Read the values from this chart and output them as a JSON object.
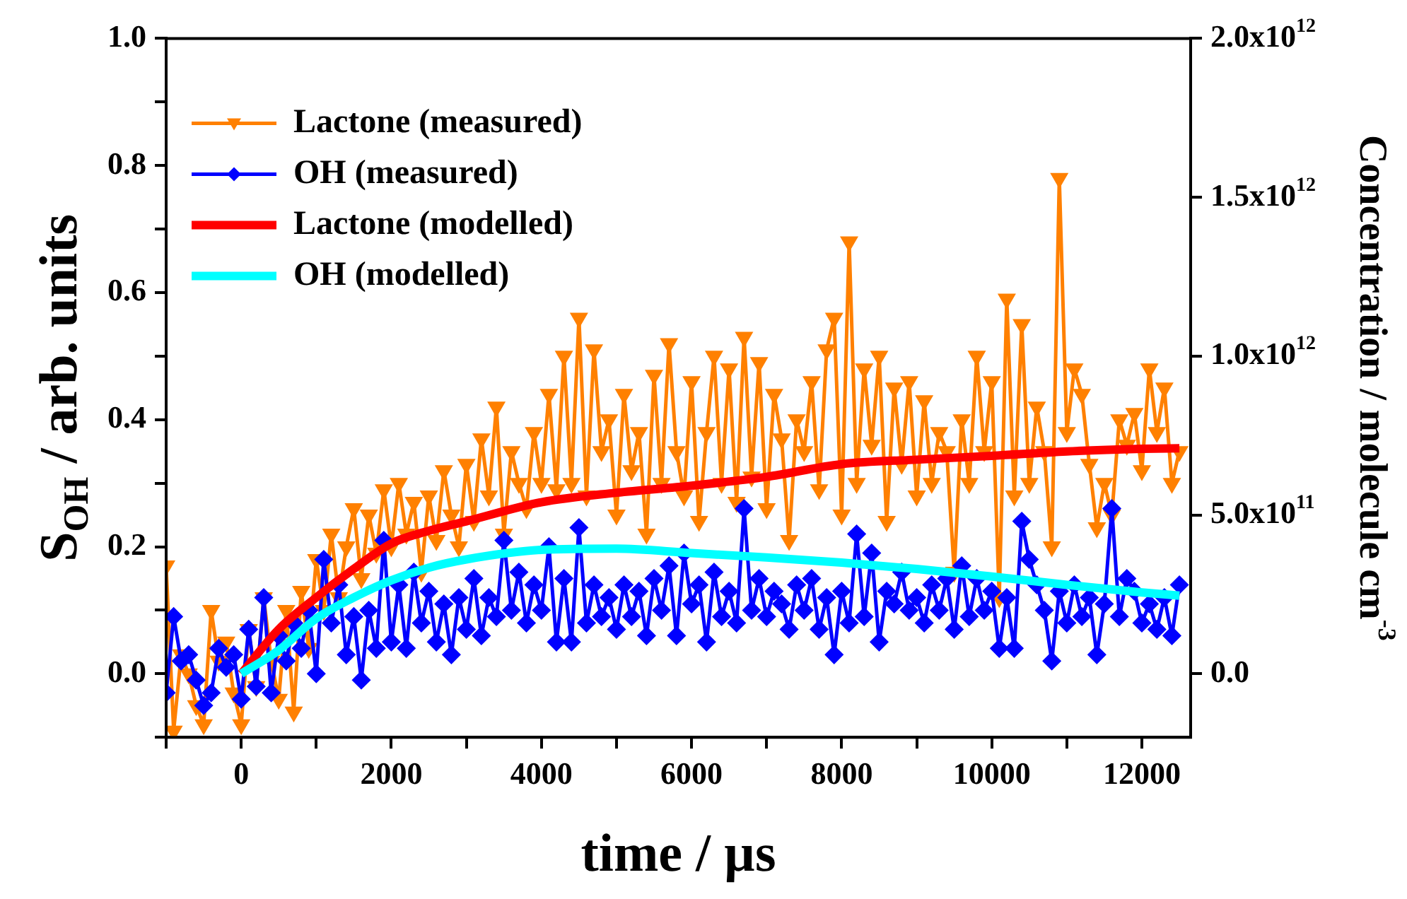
{
  "chart_data": {
    "type": "line",
    "xlabel": "time / µs",
    "ylabel": "S$_{OH}$ / arb. units",
    "y2label": "Concentration / molecule cm$^{-3}$",
    "xlim": [
      -1000,
      12650
    ],
    "ylim": [
      -0.1,
      1.0
    ],
    "y2lim": [
      -200000000000,
      2000000000000
    ],
    "xticks": [
      {
        "value": -1000,
        "label": null
      },
      0,
      {
        "value": 1000,
        "label": null
      },
      2000,
      {
        "value": 3000,
        "label": null
      },
      4000,
      {
        "value": 5000,
        "label": null
      },
      6000,
      {
        "value": 7000,
        "label": null
      },
      8000,
      {
        "value": 9000,
        "label": null
      },
      10000,
      {
        "value": 11000,
        "label": null
      },
      12000
    ],
    "yticks": [
      {
        "value": -0.1,
        "label": null
      },
      {
        "value": 0,
        "label": "0.0"
      },
      {
        "value": 0.1,
        "label": null
      },
      0.2,
      {
        "value": 0.3,
        "label": null
      },
      0.4,
      {
        "value": 0.5,
        "label": null
      },
      0.6,
      {
        "value": 0.7,
        "label": null
      },
      0.8,
      {
        "value": 0.9,
        "label": null
      },
      {
        "value": 1,
        "label": "1.0"
      }
    ],
    "y2ticks": [
      {
        "value": 0,
        "label": "0.0"
      },
      {
        "value": 500000000000,
        "label": "5.0x10$^{11}$"
      },
      {
        "value": 1000000000000,
        "label": "1.0x10$^{12}$"
      },
      {
        "value": 1500000000000,
        "label": "1.5x10$^{12}$"
      },
      {
        "value": 2000000000000,
        "label": "2.0x10$^{12}$"
      }
    ],
    "legend": "top left",
    "x": [
      -1000,
      -900,
      -800,
      -700,
      -600,
      -500,
      -400,
      -300,
      -200,
      -100,
      0,
      100,
      200,
      300,
      400,
      500,
      600,
      700,
      800,
      900,
      1000,
      1100,
      1200,
      1300,
      1400,
      1500,
      1600,
      1700,
      1800,
      1900,
      2000,
      2100,
      2200,
      2300,
      2400,
      2500,
      2600,
      2700,
      2800,
      2900,
      3000,
      3100,
      3200,
      3300,
      3400,
      3500,
      3600,
      3700,
      3800,
      3900,
      4000,
      4100,
      4200,
      4300,
      4400,
      4500,
      4600,
      4700,
      4800,
      4900,
      5000,
      5100,
      5200,
      5300,
      5400,
      5500,
      5600,
      5700,
      5800,
      5900,
      6000,
      6100,
      6200,
      6300,
      6400,
      6500,
      6600,
      6700,
      6800,
      6900,
      7000,
      7100,
      7200,
      7300,
      7400,
      7500,
      7600,
      7700,
      7800,
      7900,
      8000,
      8100,
      8200,
      8300,
      8400,
      8500,
      8600,
      8700,
      8800,
      8900,
      9000,
      9100,
      9200,
      9300,
      9400,
      9500,
      9600,
      9700,
      9800,
      9900,
      10000,
      10100,
      10200,
      10300,
      10400,
      10500,
      10600,
      10700,
      10800,
      10900,
      11000,
      11100,
      11200,
      11300,
      11400,
      11500,
      11600,
      11700,
      11800,
      11900,
      12000,
      12100,
      12200,
      12300,
      12400,
      12500
    ],
    "series": [
      {
        "name": "Lactone (measured)",
        "color": "#ff8000",
        "marker": "triangle",
        "values": [
          0.17,
          -0.09,
          0.03,
          0.0,
          -0.05,
          -0.08,
          0.1,
          0.02,
          0.05,
          -0.03,
          -0.08,
          0.07,
          -0.02,
          0.12,
          0.02,
          -0.04,
          0.1,
          -0.06,
          0.13,
          0.04,
          0.18,
          0.1,
          0.22,
          0.12,
          0.2,
          0.26,
          0.15,
          0.25,
          0.19,
          0.29,
          0.2,
          0.3,
          0.22,
          0.27,
          0.16,
          0.28,
          0.21,
          0.32,
          0.25,
          0.2,
          0.33,
          0.24,
          0.37,
          0.28,
          0.42,
          0.22,
          0.35,
          0.3,
          0.26,
          0.38,
          0.3,
          0.44,
          0.29,
          0.5,
          0.3,
          0.56,
          0.28,
          0.51,
          0.35,
          0.4,
          0.25,
          0.44,
          0.32,
          0.38,
          0.22,
          0.47,
          0.3,
          0.52,
          0.35,
          0.28,
          0.46,
          0.24,
          0.38,
          0.5,
          0.3,
          0.48,
          0.27,
          0.53,
          0.31,
          0.49,
          0.26,
          0.44,
          0.37,
          0.21,
          0.4,
          0.35,
          0.46,
          0.29,
          0.51,
          0.56,
          0.25,
          0.68,
          0.3,
          0.48,
          0.36,
          0.5,
          0.24,
          0.45,
          0.33,
          0.46,
          0.28,
          0.43,
          0.3,
          0.38,
          0.35,
          0.16,
          0.4,
          0.3,
          0.5,
          0.35,
          0.46,
          0.12,
          0.59,
          0.28,
          0.55,
          0.3,
          0.42,
          0.35,
          0.2,
          0.78,
          0.38,
          0.48,
          0.44,
          0.33,
          0.23,
          0.3,
          0.25,
          0.4,
          0.36,
          0.41,
          0.32,
          0.48,
          0.38,
          0.45,
          0.3,
          0.35
        ]
      },
      {
        "name": "OH (measured)",
        "color": "#0000ff",
        "marker": "diamond",
        "values": [
          -0.03,
          0.09,
          0.02,
          0.03,
          -0.01,
          -0.05,
          -0.03,
          0.04,
          0.01,
          0.03,
          -0.04,
          0.07,
          -0.02,
          0.12,
          -0.03,
          0.06,
          0.02,
          0.08,
          0.04,
          0.1,
          0.0,
          0.18,
          0.08,
          0.14,
          0.03,
          0.09,
          -0.01,
          0.1,
          0.04,
          0.21,
          0.05,
          0.14,
          0.04,
          0.16,
          0.08,
          0.13,
          0.05,
          0.11,
          0.03,
          0.12,
          0.07,
          0.15,
          0.06,
          0.12,
          0.09,
          0.21,
          0.1,
          0.16,
          0.08,
          0.14,
          0.1,
          0.2,
          0.05,
          0.15,
          0.05,
          0.23,
          0.08,
          0.14,
          0.09,
          0.12,
          0.07,
          0.14,
          0.09,
          0.13,
          0.06,
          0.15,
          0.1,
          0.17,
          0.06,
          0.19,
          0.11,
          0.14,
          0.05,
          0.16,
          0.09,
          0.13,
          0.08,
          0.26,
          0.1,
          0.15,
          0.09,
          0.13,
          0.11,
          0.07,
          0.14,
          0.1,
          0.15,
          0.07,
          0.12,
          0.03,
          0.13,
          0.08,
          0.22,
          0.09,
          0.19,
          0.05,
          0.13,
          0.11,
          0.16,
          0.1,
          0.12,
          0.08,
          0.14,
          0.1,
          0.15,
          0.07,
          0.17,
          0.09,
          0.15,
          0.1,
          0.13,
          0.04,
          0.12,
          0.04,
          0.24,
          0.18,
          0.14,
          0.1,
          0.02,
          0.13,
          0.08,
          0.14,
          0.09,
          0.12,
          0.03,
          0.11,
          0.26,
          0.09,
          0.15,
          0.13,
          0.08,
          0.11,
          0.07,
          0.12,
          0.06,
          0.14
        ]
      },
      {
        "name": "Lactone (modelled)",
        "color": "#ff0000",
        "marker": "none",
        "x": [
          0,
          500,
          1000,
          1500,
          2000,
          2500,
          3000,
          4000,
          5000,
          6000,
          7000,
          8000,
          9000,
          10000,
          11000,
          12000,
          12500
        ],
        "values": [
          0,
          0.07,
          0.12,
          0.165,
          0.205,
          0.225,
          0.24,
          0.27,
          0.285,
          0.296,
          0.31,
          0.33,
          0.337,
          0.343,
          0.35,
          0.354,
          0.355
        ]
      },
      {
        "name": "OH (modelled)",
        "color": "#00ffff",
        "marker": "none",
        "x": [
          0,
          500,
          1000,
          1500,
          2000,
          2500,
          3000,
          4000,
          5000,
          6000,
          7000,
          8000,
          9000,
          10000,
          11000,
          12000,
          12500
        ],
        "values": [
          0,
          0.037,
          0.087,
          0.12,
          0.147,
          0.167,
          0.18,
          0.195,
          0.197,
          0.19,
          0.183,
          0.175,
          0.165,
          0.153,
          0.14,
          0.128,
          0.123
        ]
      }
    ]
  }
}
